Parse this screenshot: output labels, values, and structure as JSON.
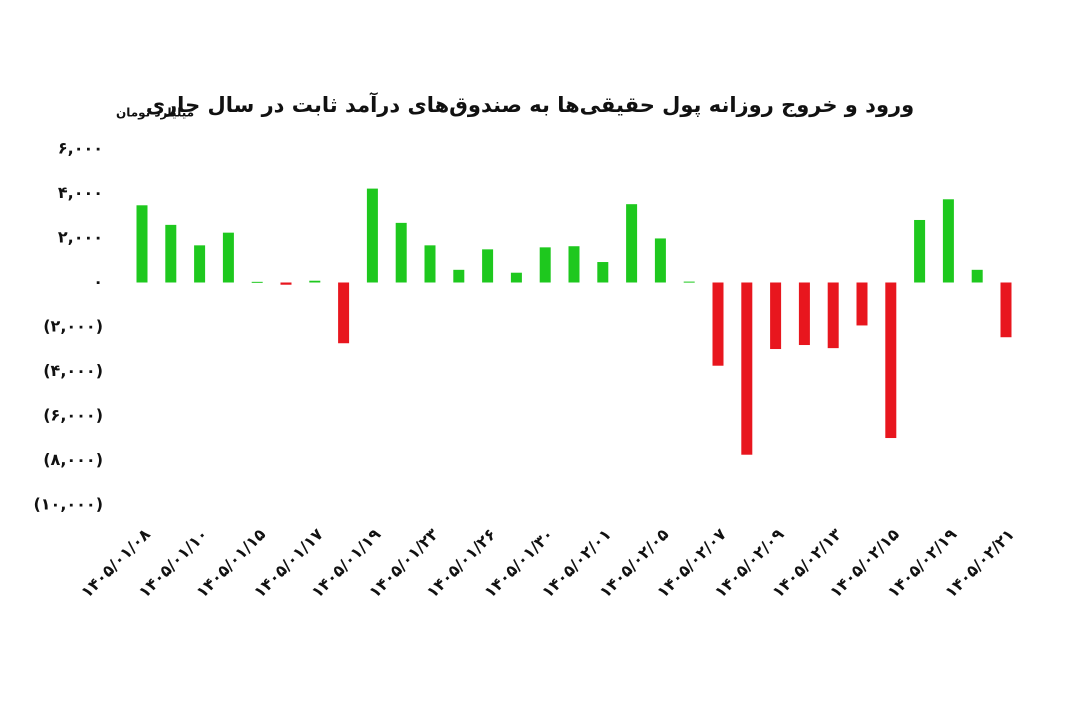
{
  "chart_data": {
    "type": "bar",
    "title": "ورود و خروج روزانه پول حقیقی‌ها به صندوق‌های درآمد ثابت در سال جاری",
    "y_axis_label": "میلیارد تومان",
    "categories": [
      "۱۴۰۵/۰۱/۰۸",
      null,
      "۱۴۰۵/۰۱/۱۰",
      null,
      "۱۴۰۵/۰۱/۱۵",
      null,
      "۱۴۰۵/۰۱/۱۷",
      null,
      "۱۴۰۵/۰۱/۱۹",
      null,
      "۱۴۰۵/۰۱/۲۳",
      null,
      "۱۴۰۵/۰۱/۲۶",
      null,
      "۱۴۰۵/۰۱/۳۰",
      null,
      "۱۴۰۵/۰۲/۰۱",
      null,
      "۱۴۰۵/۰۲/۰۵",
      null,
      "۱۴۰۵/۰۲/۰۷",
      null,
      "۱۴۰۵/۰۲/۰۹",
      null,
      "۱۴۰۵/۰۲/۱۳",
      null,
      "۱۴۰۵/۰۲/۱۵",
      null,
      "۱۴۰۵/۰۲/۱۹",
      null,
      "۱۴۰۵/۰۲/۲۱"
    ],
    "values": [
      3470,
      2590,
      1670,
      2240,
      30,
      -100,
      80,
      -2730,
      4220,
      2680,
      1670,
      570,
      1490,
      440,
      1580,
      1630,
      920,
      3520,
      1980,
      40,
      -3740,
      -7740,
      -2990,
      -2810,
      -2950,
      -1930,
      -6990,
      2810,
      3740,
      570,
      -2460
    ],
    "positive_color": "#1ec81e",
    "negative_color": "#e8161e",
    "ylim": [
      -10000,
      6000
    ],
    "yticks": [
      {
        "value": 6000,
        "label": "۶,۰۰۰"
      },
      {
        "value": 4000,
        "label": "۴,۰۰۰"
      },
      {
        "value": 2000,
        "label": "۲,۰۰۰"
      },
      {
        "value": 0,
        "label": "۰"
      },
      {
        "value": -2000,
        "label": "(۲,۰۰۰)"
      },
      {
        "value": -4000,
        "label": "(۴,۰۰۰)"
      },
      {
        "value": -6000,
        "label": "(۶,۰۰۰)"
      },
      {
        "value": -8000,
        "label": "(۸,۰۰۰)"
      },
      {
        "value": -10000,
        "label": "(۱۰,۰۰۰)"
      }
    ],
    "grid": false
  }
}
